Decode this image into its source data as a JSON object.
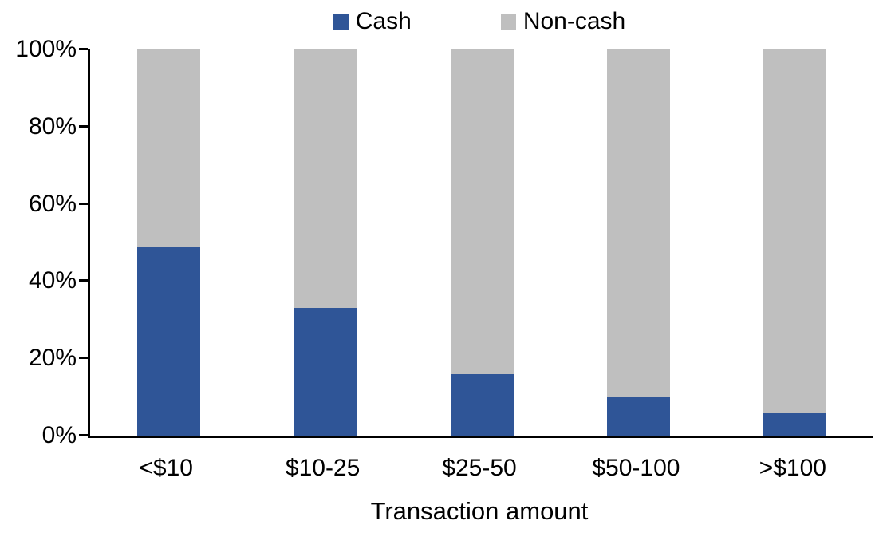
{
  "chart_data": {
    "type": "bar",
    "stacked": true,
    "percent_stacked": true,
    "title": "",
    "categories": [
      "<$10",
      "$10-25",
      "$25-50",
      "$50-100",
      ">$100"
    ],
    "series": [
      {
        "name": "Cash",
        "color": "#2F5597",
        "values": [
          49,
          33,
          16,
          10,
          6
        ]
      },
      {
        "name": "Non-cash",
        "color": "#BFBFBF",
        "values": [
          51,
          67,
          84,
          90,
          94
        ]
      }
    ],
    "xlabel": "Transaction amount",
    "ylabel": "",
    "ylim": [
      0,
      100
    ],
    "y_ticks": [
      "0%",
      "20%",
      "40%",
      "60%",
      "80%",
      "100%"
    ],
    "legend_position": "top",
    "grid": false,
    "axis_color": "#000000",
    "background_color": "#FFFFFF"
  }
}
